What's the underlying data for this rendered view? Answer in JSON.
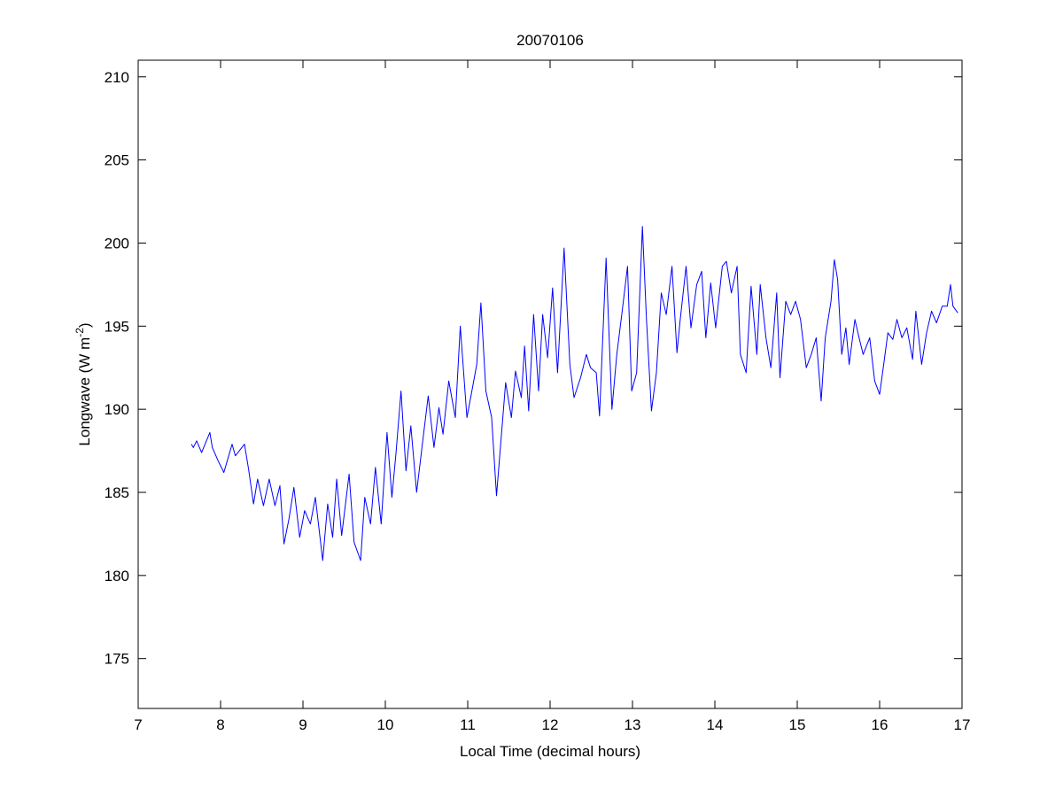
{
  "chart_data": {
    "type": "line",
    "title": "20070106",
    "xlabel": "Local Time (decimal hours)",
    "ylabel": {
      "main": "Longwave (W m",
      "sup": "-2",
      "end": ")"
    },
    "xlim": [
      7,
      17
    ],
    "ylim": [
      172,
      211
    ],
    "xticks": [
      7,
      8,
      9,
      10,
      11,
      12,
      13,
      14,
      15,
      16,
      17
    ],
    "yticks": [
      175,
      180,
      185,
      190,
      195,
      200,
      205,
      210
    ],
    "grid": false,
    "line_color": "#0000ff",
    "series": [
      {
        "x": [
          7.645,
          7.67,
          7.71,
          7.77,
          7.87,
          7.9,
          7.97,
          8.04,
          8.14,
          8.18,
          8.29,
          8.34,
          8.4,
          8.45,
          8.52,
          8.59,
          8.66,
          8.72,
          8.77,
          8.83,
          8.89,
          8.96,
          9.02,
          9.09,
          9.15,
          9.24,
          9.3,
          9.36,
          9.41,
          9.47,
          9.56,
          9.62,
          9.7,
          9.75,
          9.82,
          9.88,
          9.95,
          10.02,
          10.08,
          10.13,
          10.19,
          10.25,
          10.31,
          10.38,
          10.45,
          10.52,
          10.59,
          10.65,
          10.7,
          10.77,
          10.85,
          10.91,
          10.99,
          11.05,
          11.11,
          11.16,
          11.22,
          11.29,
          11.35,
          11.41,
          11.46,
          11.53,
          11.58,
          11.65,
          11.69,
          11.74,
          11.8,
          11.86,
          11.91,
          11.97,
          12.03,
          12.09,
          12.17,
          12.24,
          12.29,
          12.37,
          12.44,
          12.49,
          12.56,
          12.6,
          12.68,
          12.75,
          12.81,
          12.87,
          12.94,
          12.99,
          13.05,
          13.12,
          13.17,
          13.23,
          13.29,
          13.35,
          13.41,
          13.48,
          13.54,
          13.58,
          13.65,
          13.71,
          13.78,
          13.84,
          13.89,
          13.95,
          14.01,
          14.09,
          14.14,
          14.2,
          14.27,
          14.31,
          14.38,
          14.44,
          14.51,
          14.55,
          14.62,
          14.68,
          14.75,
          14.79,
          14.86,
          14.92,
          14.98,
          15.04,
          15.11,
          15.17,
          15.23,
          15.29,
          15.34,
          15.41,
          15.45,
          15.49,
          15.54,
          15.59,
          15.63,
          15.7,
          15.75,
          15.8,
          15.88,
          15.94,
          16.0,
          16.05,
          16.1,
          16.16,
          16.21,
          16.27,
          16.33,
          16.4,
          16.44,
          16.51,
          16.57,
          16.63,
          16.69,
          16.76,
          16.82,
          16.86,
          16.89,
          16.95
        ],
        "y": [
          187.9,
          187.7,
          188.1,
          187.4,
          188.6,
          187.7,
          186.9,
          186.2,
          187.9,
          187.2,
          187.9,
          186.4,
          184.3,
          185.8,
          184.2,
          185.8,
          184.2,
          185.4,
          181.9,
          183.4,
          185.3,
          182.3,
          183.9,
          183.1,
          184.7,
          180.9,
          184.3,
          182.3,
          185.8,
          182.4,
          186.1,
          182.0,
          180.9,
          184.7,
          183.1,
          186.5,
          183.1,
          188.6,
          184.7,
          187.4,
          191.1,
          186.3,
          189.0,
          185.0,
          187.9,
          190.8,
          187.7,
          190.1,
          188.5,
          191.7,
          189.5,
          195.0,
          189.5,
          191.1,
          192.7,
          196.4,
          191.1,
          189.5,
          184.8,
          188.5,
          191.6,
          189.5,
          192.3,
          190.7,
          193.8,
          189.9,
          195.7,
          191.1,
          195.7,
          193.1,
          197.3,
          192.2,
          199.7,
          192.7,
          190.7,
          191.9,
          193.3,
          192.5,
          192.2,
          189.6,
          199.1,
          190.0,
          193.3,
          195.7,
          198.6,
          191.1,
          192.2,
          201.0,
          195.4,
          189.9,
          192.2,
          197.0,
          195.7,
          198.6,
          193.4,
          195.4,
          198.6,
          194.9,
          197.5,
          198.3,
          194.3,
          197.6,
          194.9,
          198.6,
          198.9,
          197.0,
          198.6,
          193.3,
          192.2,
          197.4,
          193.3,
          197.5,
          194.3,
          192.5,
          197.0,
          191.9,
          196.5,
          195.7,
          196.5,
          195.4,
          192.5,
          193.3,
          194.3,
          190.5,
          194.3,
          196.5,
          199.0,
          197.8,
          193.3,
          194.9,
          192.7,
          195.4,
          194.3,
          193.3,
          194.3,
          191.7,
          190.9,
          192.7,
          194.6,
          194.2,
          195.4,
          194.3,
          194.9,
          193.0,
          195.9,
          192.7,
          194.6,
          195.9,
          195.2,
          196.2,
          196.2,
          197.5,
          196.2,
          195.8
        ]
      }
    ]
  }
}
